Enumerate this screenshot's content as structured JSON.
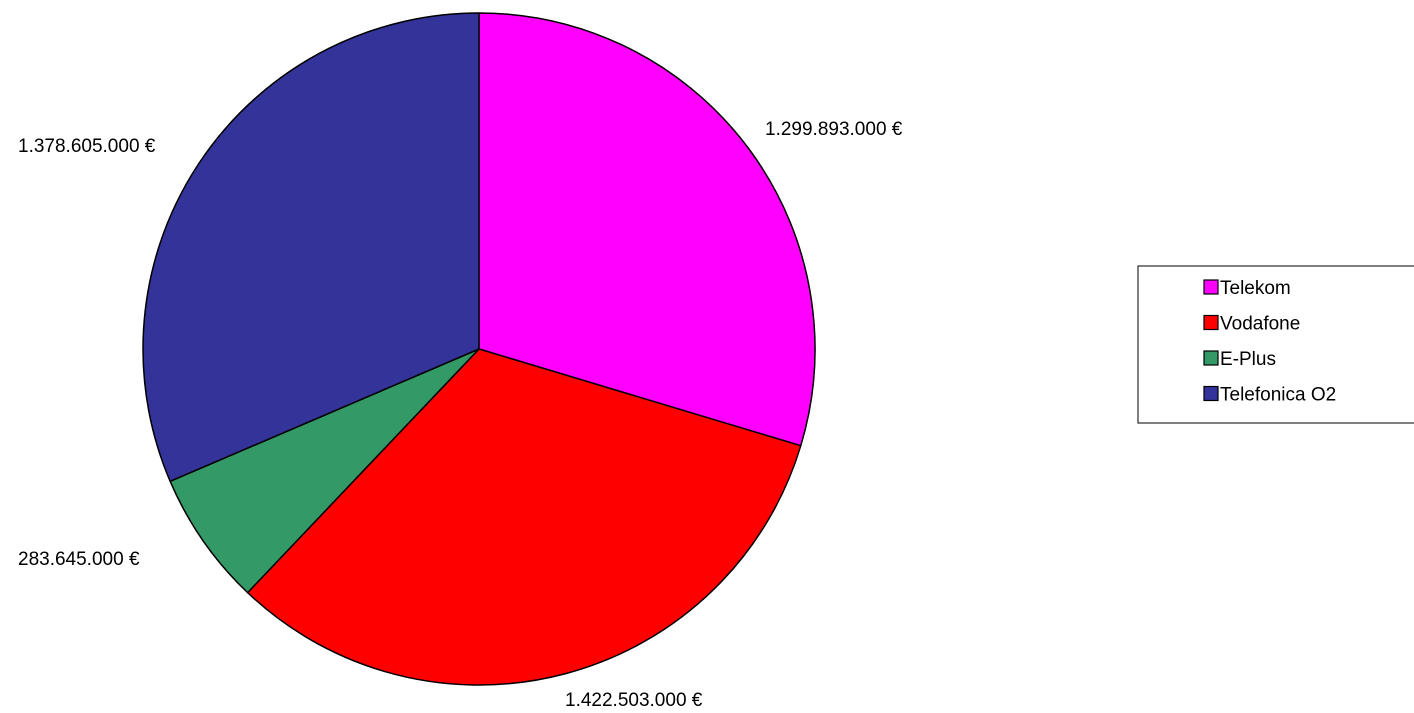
{
  "chart_data": {
    "type": "pie",
    "categories": [
      "Telekom",
      "Vodafone",
      "E-Plus",
      "Telefonica O2"
    ],
    "values": [
      1299893000,
      1422503000,
      283645000,
      1378605000
    ],
    "value_labels": [
      "1.299.893.000 €",
      "1.422.503.000 €",
      "283.645.000 €",
      "1.378.605.000 €"
    ],
    "colors": [
      "#ff00ff",
      "#ff0000",
      "#339966",
      "#333399"
    ],
    "start_angle": "12 o'clock",
    "direction": "clockwise",
    "legend": "right",
    "title": ""
  }
}
